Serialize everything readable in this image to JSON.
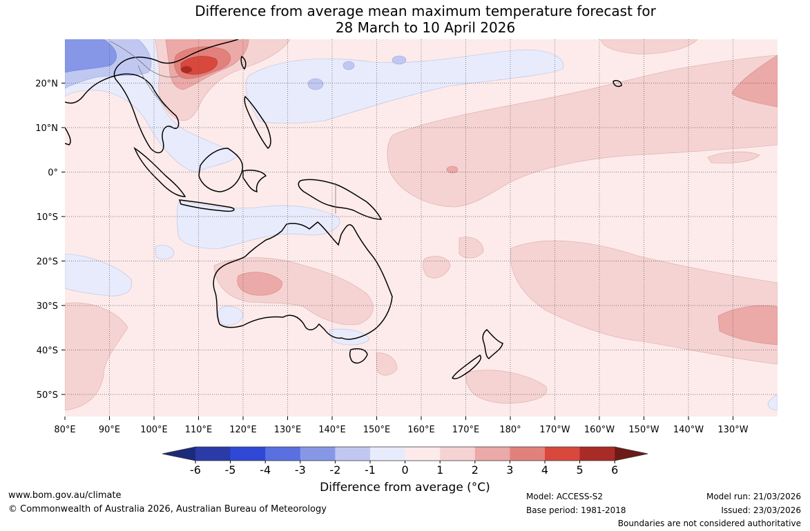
{
  "title": {
    "line1": "Difference from average mean maximum temperature forecast for",
    "line2": "28 March to 10 April 2026"
  },
  "map": {
    "lon_labels": [
      "80°E",
      "90°E",
      "100°E",
      "110°E",
      "120°E",
      "130°E",
      "140°E",
      "150°E",
      "160°E",
      "170°E",
      "180°",
      "170°W",
      "160°W",
      "150°W",
      "140°W",
      "130°W"
    ],
    "lat_labels": [
      "20°N",
      "10°N",
      "0°",
      "10°S",
      "20°S",
      "30°S",
      "40°S",
      "50°S"
    ]
  },
  "colorbar": {
    "ticks": [
      "-6",
      "-5",
      "-4",
      "-3",
      "-2",
      "-1",
      "0",
      "1",
      "2",
      "3",
      "4",
      "5",
      "6"
    ],
    "colors": [
      "#1b2a7a",
      "#2a3ba8",
      "#2f49d6",
      "#5a70e0",
      "#8797e8",
      "#c0c8f2",
      "#e8ebfb",
      "#fcebea",
      "#f5d3d2",
      "#eba9a7",
      "#e2817c",
      "#d8483c",
      "#a92b26",
      "#6e1a16"
    ],
    "label": "Difference from average (°C)"
  },
  "footer": {
    "url": "www.bom.gov.au/climate",
    "copyright": "© Commonwealth of Australia 2026, Australian Bureau of Meteorology",
    "model": "Model: ACCESS-S2",
    "base_period": "Base period: 1981-2018",
    "model_run": "Model run: 21/03/2026",
    "issued": "Issued: 23/03/2026",
    "disclaimer": "Boundaries are not considered authoritative"
  }
}
